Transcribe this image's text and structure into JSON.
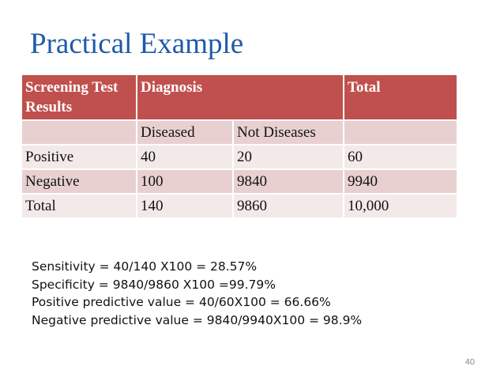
{
  "title": "Practical Example",
  "table": {
    "header": [
      "Screening Test Results",
      "Diagnosis",
      "Total"
    ],
    "subheader": [
      "",
      "Diseased",
      "Not Diseases",
      ""
    ],
    "rows": [
      [
        "Positive",
        "40",
        "20",
        "60"
      ],
      [
        "Negative",
        "100",
        "9840",
        "9940"
      ],
      [
        "Total",
        "140",
        "9860",
        "10,000"
      ]
    ]
  },
  "notes": [
    "Sensitivity = 40/140 X100 = 28.57%",
    "Specificity = 9840/9860 X100 =99.79%",
    "Positive predictive value = 40/60X100 = 66.66%",
    "Negative predictive value = 9840/9940X100 = 98.9%"
  ],
  "page_number": "40",
  "colors": {
    "title": "#1f5aa8",
    "header_bg": "#c0504d",
    "row_dark": "#e8d0d0",
    "row_light": "#f3e9e9"
  }
}
